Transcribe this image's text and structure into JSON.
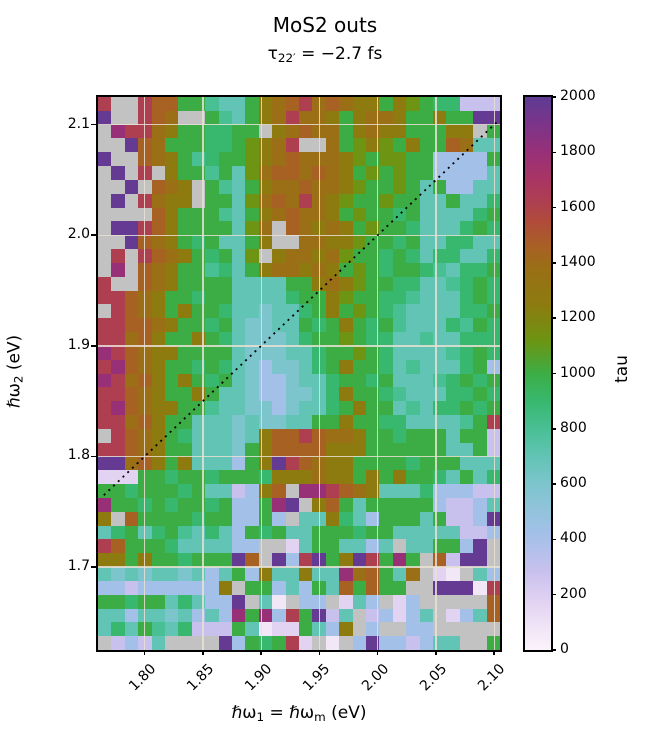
{
  "title": "MoS2 outs",
  "subtitle": {
    "prefix": "τ",
    "sub": "22′",
    "rest": " = −2.7 fs"
  },
  "axes": {
    "x_label": {
      "pre": "ℏω",
      "sub1": "1",
      "mid": " = ℏω",
      "sub2": "m",
      "post": " (eV)"
    },
    "y_label": {
      "pre": "ℏω",
      "sub": "2",
      "post": " (eV)"
    },
    "x_tick_labels": [
      "1.80",
      "1.85",
      "1.90",
      "1.95",
      "2.00",
      "2.05",
      "2.10"
    ],
    "x_tick_values": [
      1.8,
      1.85,
      1.9,
      1.95,
      2.0,
      2.05,
      2.1
    ],
    "y_tick_labels": [
      "2.1",
      "2.0",
      "1.9",
      "1.8",
      "1.7"
    ],
    "y_tick_values": [
      2.1,
      2.0,
      1.9,
      1.8,
      1.7
    ]
  },
  "colorbar": {
    "label": "tau",
    "tick_labels": [
      "0",
      "200",
      "400",
      "600",
      "800",
      "1000",
      "1200",
      "1400",
      "1600",
      "1800",
      "2000"
    ],
    "tick_values": [
      0,
      200,
      400,
      600,
      800,
      1000,
      1200,
      1400,
      1600,
      1800,
      2000
    ],
    "min": 0,
    "max": 2000
  },
  "chart_data": {
    "type": "heatmap",
    "title": "MoS2 outs",
    "subtitle": "τ22′ = −2.7 fs",
    "xlabel": "ℏω1 = ℏωm (eV)",
    "ylabel": "ℏω2 (eV)",
    "value_label": "tau",
    "value_range": [
      0,
      2000
    ],
    "x_range": [
      1.76,
      2.105
    ],
    "y_range": [
      1.625,
      2.125
    ],
    "n_cols": 30,
    "n_rows": 40,
    "grid_on": true,
    "note": "rows are top-to-bottom (y=2.125 down to 1.625); chars map to tau values via legend; G = missing/NaN shown gray",
    "nan_color": "#c2c2c2",
    "legend": {
      "G": null,
      "P": 1980,
      "M": 1800,
      "C": 1620,
      "R": 1450,
      "O": 1380,
      "Y": 1250,
      "y": 1120,
      "g": 1000,
      "e": 900,
      "T": 800,
      "t": 700,
      "c": 600,
      "B": 420,
      "L": 280,
      "l": 170,
      "W": 70
    },
    "rows": [
      "CGGCRRggTttgYORCOROYYgYygeeLLL",
      "PGGCROGGgTtgYOCOOYgYOOYggYggPP",
      "GMCCOYggeeggGYOROOgYOYYgggYYGg",
      "GGPROgggeegyYOCGGOgyYygYggROtt",
      "PGGROYgTeggyYOROOOYygyyggBBBBg",
      "GPGCGYggTgtyORROROYgygyggBBBBt",
      "GGPGROYGgTtgYOOROOYyggygtgBBtt",
      "GPGCOYYGggtyOROCOYyggyggttgtte",
      "GGGGRYgggTtgYOROOYgyggegtttteg",
      "GPPCRYggggtyOGROYOYgyggetttege",
      "GGPROYgegttgYGGOOYYyggegtteett",
      "GCGCROYgegtyGYOOYOyggegeteette",
      "GMGROYggTetgYOOYOYgygeggeTteeg",
      "CGGROYggggttttggYOYyggeettTege",
      "CCROYggeggtttteggYyggeeTtttege",
      "GCROYgYggettcttegYgygeTtttteeg",
      "CCRROYggegtccttgegYgegTttteTge",
      "CCORYggYgetcccteggygeettTtteee",
      "MCROYYggggtccctteggygettttTege",
      "CMROYggegetcBcctegYggetTtttegB",
      "MCORYgYgegtcBBctteggegtttTegeg",
      "CCROYggYgttcBBccteYggeTttteege",
      "CMROYYggTttccBcttegYggtTteegeg",
      "CCORYggtttctccttggYggeettttTgC",
      "GCROYgetttctYRRCROOYggegggtggL",
      "CCROYggtttcgYRRRRYYYggggggttgL",
      "PPORYgYtttBgYPCROYYggggegggttt",
      "lllggeggegggeYYYOYYgYgYggetgte",
      "ggegggegttLBYRGMMCROYttteBBBLL",
      "MggegeggegBBgMPGYRgtgggggBLLBt",
      "YGRggggeggBBgBGttYetBgggtgLLBP",
      "tegtegTtetBgegttgggeggtttttLLB",
      "CRgggettttBBGGltggttBtGttggBPG",
      "YYgYggegggPRGPBCPgYPCgMgGRLPPG",
      "tctcttctBtgBYttYttMORgtOGlWGtB",
      "BBLBBBBBBYGggBtBgtRgRggGGPPPWC",
      "ggeggtetBBPGtWGBBGltBGlBGGGGGR",
      "ttBttctBtBMgMBCgPLtGLBlBtGlBtR",
      "tetgTteLLLgtWllgtBYGBGGBBGGGGG",
      "GLBLtGGGGPBgegClGWGBPBBLBttGGg"
    ],
    "colormap_stops": [
      [
        0,
        "#faf3fb"
      ],
      [
        70,
        "#f2e7f7"
      ],
      [
        170,
        "#e3d3f2"
      ],
      [
        280,
        "#c9c1ed"
      ],
      [
        420,
        "#a3c0e8"
      ],
      [
        500,
        "#93c3dc"
      ],
      [
        600,
        "#7cc5cc"
      ],
      [
        700,
        "#62c4b4"
      ],
      [
        800,
        "#49bf94"
      ],
      [
        900,
        "#38b86e"
      ],
      [
        1000,
        "#3cad45"
      ],
      [
        1120,
        "#6d9413"
      ],
      [
        1250,
        "#8d7b10"
      ],
      [
        1380,
        "#9a6f15"
      ],
      [
        1450,
        "#a76223"
      ],
      [
        1550,
        "#b04b3a"
      ],
      [
        1620,
        "#ae3f51"
      ],
      [
        1700,
        "#a93563"
      ],
      [
        1800,
        "#983078"
      ],
      [
        1900,
        "#7c3489"
      ],
      [
        2000,
        "#5e3b94"
      ]
    ],
    "diagonal_line": {
      "style": "dotted",
      "color": "#000000",
      "from_xy": [
        1.765,
        1.765
      ],
      "to_xy": [
        2.102,
        2.102
      ]
    }
  }
}
